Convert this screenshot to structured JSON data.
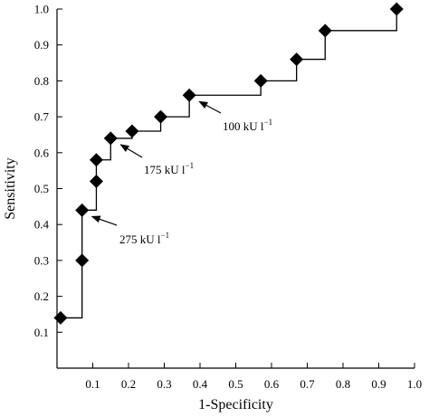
{
  "chart_data": {
    "type": "line",
    "xlabel": "1-Specificity",
    "ylabel": "Sensitivity",
    "xlim": [
      0.0,
      1.0
    ],
    "ylim": [
      0.0,
      1.0
    ],
    "x_ticks": [
      0.1,
      0.2,
      0.3,
      0.4,
      0.5,
      0.6,
      0.7,
      0.8,
      0.9,
      1.0
    ],
    "y_ticks": [
      0.1,
      0.2,
      0.3,
      0.4,
      0.5,
      0.6,
      0.7,
      0.8,
      0.9,
      1.0
    ],
    "x_tick_labels": [
      "0.1",
      "0.2",
      "0.3",
      "0.4",
      "0.5",
      "0.6",
      "0.7",
      "0.8",
      "0.9",
      "1.0"
    ],
    "y_tick_labels": [
      "0.1",
      "0.2",
      "0.3",
      "0.4",
      "0.5",
      "0.6",
      "0.7",
      "0.8",
      "0.9",
      "1.0"
    ],
    "grid": false,
    "legend": "none",
    "line_style": "step",
    "marker": "diamond",
    "color": "#000000",
    "points": [
      {
        "x": 0.01,
        "y": 0.14
      },
      {
        "x": 0.07,
        "y": 0.3
      },
      {
        "x": 0.07,
        "y": 0.44
      },
      {
        "x": 0.11,
        "y": 0.52
      },
      {
        "x": 0.11,
        "y": 0.58
      },
      {
        "x": 0.15,
        "y": 0.64
      },
      {
        "x": 0.21,
        "y": 0.66
      },
      {
        "x": 0.29,
        "y": 0.7
      },
      {
        "x": 0.37,
        "y": 0.76
      },
      {
        "x": 0.57,
        "y": 0.8
      },
      {
        "x": 0.67,
        "y": 0.86
      },
      {
        "x": 0.75,
        "y": 0.94
      },
      {
        "x": 0.95,
        "y": 1.0
      }
    ],
    "annotations": [
      {
        "label": "100 kU l",
        "superscript": "−1",
        "point_index": 8
      },
      {
        "label": "175 kU l",
        "superscript": "−1",
        "point_index": 5
      },
      {
        "label": "275 kU l",
        "superscript": "−1",
        "point_index": 2
      }
    ]
  }
}
